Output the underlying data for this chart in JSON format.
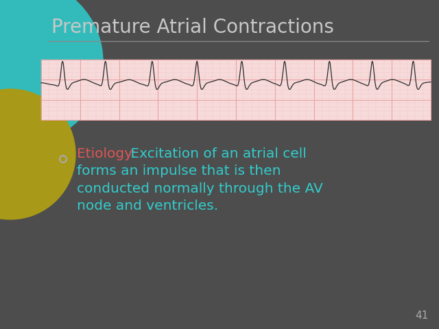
{
  "title": "Premature Atrial Contractions",
  "title_color": "#c8c8c8",
  "title_fontsize": 20,
  "bg_color": "#4d4d4d",
  "etiology_label": "Etiology:",
  "etiology_label_color": "#e05555",
  "etiology_text_color": "#33cccc",
  "etiology_fontsize": 14.5,
  "bullet_color": "#aaaaaa",
  "ecg_bg": "#f7dada",
  "ecg_grid_major": "#e8a0a0",
  "ecg_grid_minor": "#f0c8c8",
  "ecg_line_color": "#2a2a2a",
  "slide_number": "41",
  "slide_number_color": "#aaaaaa",
  "teal_circle_color": "#33bbbb",
  "gold_circle_color": "#a89918",
  "underline_color": "#888888",
  "line1_rest": " Excitation of an atrial cell",
  "line2": "forms an impulse that is then",
  "line3": "conducted normally through the AV",
  "line4": "node and ventricles."
}
